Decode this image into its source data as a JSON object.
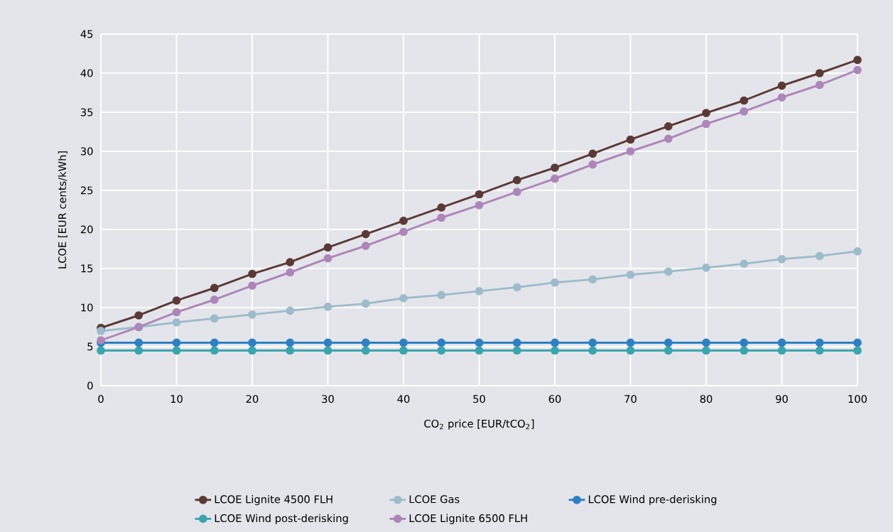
{
  "chart_data": {
    "type": "line",
    "xlabel": "CO$_{2}$ price [EUR/tCO$_{2}$]",
    "ylabel": "LCOE  [EUR cents/kWh]",
    "x": [
      0,
      5,
      10,
      15,
      20,
      25,
      30,
      35,
      40,
      45,
      50,
      55,
      60,
      65,
      70,
      75,
      80,
      85,
      90,
      95,
      100
    ],
    "series": [
      {
        "name": "LCOE Lignite 4500 FLH",
        "color": "#5b3a36",
        "values": [
          7.4,
          9.0,
          10.9,
          12.5,
          14.3,
          15.8,
          17.7,
          19.4,
          21.1,
          22.8,
          24.5,
          26.3,
          27.9,
          29.7,
          31.5,
          33.2,
          34.9,
          36.5,
          38.4,
          40.0,
          41.7
        ]
      },
      {
        "name": "LCOE Gas",
        "color": "#9dbccb",
        "values": [
          7.0,
          7.5,
          8.1,
          8.6,
          9.1,
          9.6,
          10.1,
          10.5,
          11.2,
          11.6,
          12.1,
          12.6,
          13.2,
          13.6,
          14.2,
          14.6,
          15.1,
          15.6,
          16.2,
          16.6,
          17.2
        ]
      },
      {
        "name": "LCOE Wind pre-derisking",
        "color": "#2e80c3",
        "values": [
          5.5,
          5.5,
          5.5,
          5.5,
          5.5,
          5.5,
          5.5,
          5.5,
          5.5,
          5.5,
          5.5,
          5.5,
          5.5,
          5.5,
          5.5,
          5.5,
          5.5,
          5.5,
          5.5,
          5.5,
          5.5
        ]
      },
      {
        "name": "LCOE Wind post-derisking",
        "color": "#3aa5ad",
        "values": [
          4.5,
          4.5,
          4.5,
          4.5,
          4.5,
          4.5,
          4.5,
          4.5,
          4.5,
          4.5,
          4.5,
          4.5,
          4.5,
          4.5,
          4.5,
          4.5,
          4.5,
          4.5,
          4.5,
          4.5,
          4.5
        ]
      },
      {
        "name": "LCOE Lignite 6500 FLH",
        "color": "#ac86b9",
        "values": [
          5.8,
          7.5,
          9.4,
          11.0,
          12.8,
          14.5,
          16.3,
          17.9,
          19.7,
          21.5,
          23.1,
          24.8,
          26.5,
          28.3,
          30.0,
          31.6,
          33.5,
          35.1,
          36.9,
          38.5,
          40.4
        ]
      }
    ],
    "xlim": [
      0,
      100
    ],
    "xticks": [
      0,
      10,
      20,
      30,
      40,
      50,
      60,
      70,
      80,
      90,
      100
    ],
    "ylim": [
      0,
      45
    ],
    "yticks": [
      0,
      5,
      10,
      15,
      20,
      25,
      30,
      35,
      40,
      45
    ],
    "grid": true,
    "legend": "bottom",
    "marker": "circle",
    "line_style": "solid"
  }
}
